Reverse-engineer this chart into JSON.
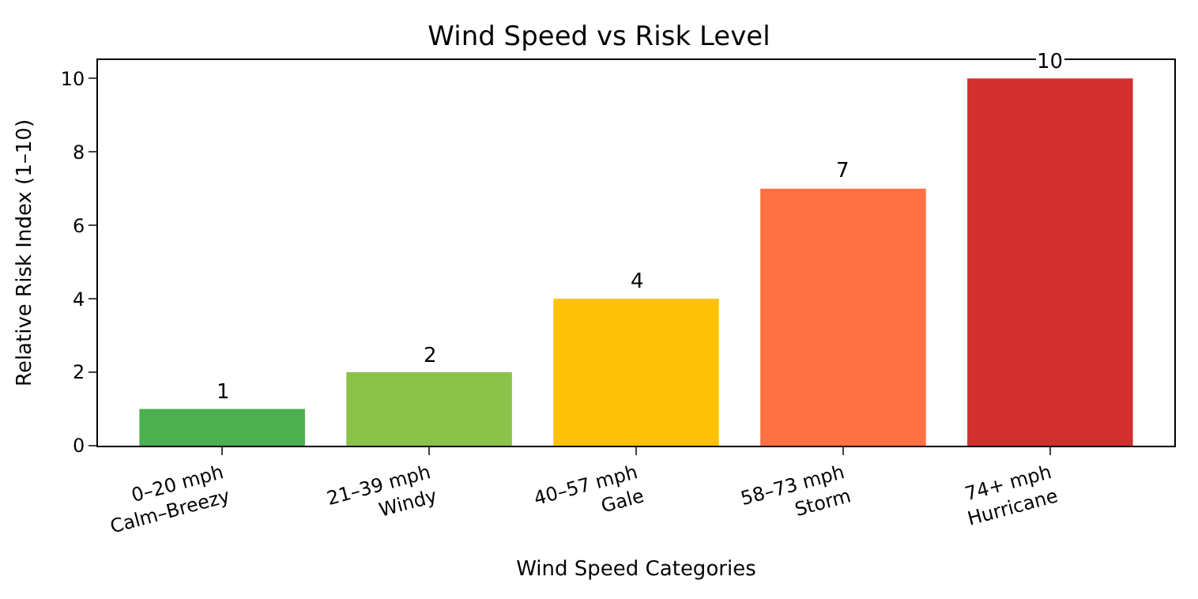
{
  "chart_data": {
    "type": "bar",
    "title": "Wind Speed vs Risk Level",
    "xlabel": "Wind Speed Categories",
    "ylabel": "Relative Risk Index (1–10)",
    "categories": [
      "0–20 mph\nCalm–Breezy",
      "21–39 mph\nWindy",
      "40–57 mph\nGale",
      "58–73 mph\nStorm",
      "74+ mph\nHurricane"
    ],
    "values": [
      1,
      2,
      4,
      7,
      10
    ],
    "colors": [
      "#4caf50",
      "#8bc34a",
      "#ffc107",
      "#ff7043",
      "#d32f2f"
    ],
    "ylim": [
      0,
      10.5
    ],
    "yticks": [
      0,
      2,
      4,
      6,
      8,
      10
    ],
    "data_labels": true,
    "grid": false,
    "legend": false
  }
}
